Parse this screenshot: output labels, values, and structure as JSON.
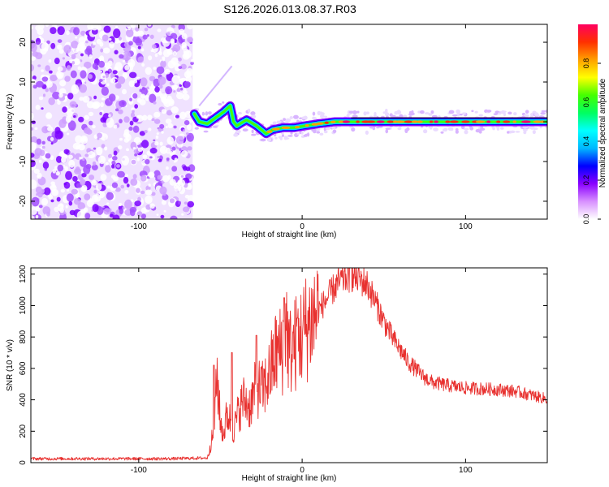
{
  "title": "S126.2026.013.08.37.R03",
  "chart_data": [
    {
      "type": "heatmap",
      "name": "spectrogram",
      "xlabel": "Height of straight line (km)",
      "ylabel": "Frequency (Hz)",
      "xlim": [
        -166,
        150
      ],
      "ylim": [
        -24.5,
        24.5
      ],
      "xticks": [
        -100,
        0,
        100
      ],
      "xtick_labels": [
        "-100",
        "0",
        "100"
      ],
      "yticks": [
        -20,
        -10,
        0,
        10,
        20
      ],
      "ytick_labels": [
        "-20",
        "-10",
        "0",
        "10",
        "20"
      ],
      "noise_region": [
        -166,
        -67
      ],
      "ridge": [
        {
          "x": -66,
          "y": 2
        },
        {
          "x": -63,
          "y": 0
        },
        {
          "x": -58,
          "y": -0.5
        },
        {
          "x": -53,
          "y": 1
        },
        {
          "x": -48,
          "y": 2.5
        },
        {
          "x": -44,
          "y": 4
        },
        {
          "x": -42,
          "y": 0
        },
        {
          "x": -40,
          "y": -1
        },
        {
          "x": -34,
          "y": 0.5
        },
        {
          "x": -28,
          "y": -1
        },
        {
          "x": -22,
          "y": -3
        },
        {
          "x": -18,
          "y": -2
        },
        {
          "x": -12,
          "y": -1.5
        },
        {
          "x": -5,
          "y": -1.5
        },
        {
          "x": 2,
          "y": -1
        },
        {
          "x": 10,
          "y": -0.5
        },
        {
          "x": 20,
          "y": 0
        },
        {
          "x": 40,
          "y": 0
        },
        {
          "x": 60,
          "y": 0
        },
        {
          "x": 80,
          "y": 0
        },
        {
          "x": 100,
          "y": 0
        },
        {
          "x": 120,
          "y": 0
        },
        {
          "x": 150,
          "y": 0
        }
      ],
      "faint_streak": [
        {
          "x": -63,
          "y": 4
        },
        {
          "x": -43,
          "y": 14
        }
      ],
      "reference_line": {
        "x_from": 30,
        "x_to": 150,
        "y": 1
      },
      "colorbar": {
        "label": "Normalized spectral amplitude",
        "range": [
          0,
          1
        ],
        "ticks": [
          0,
          0.2,
          0.4,
          0.6,
          0.8
        ],
        "tick_labels": [
          "0.0",
          "0.2",
          "0.4",
          "0.6",
          "0.8"
        ],
        "colors": [
          "#ffffff",
          "#d890ff",
          "#8a00ff",
          "#0000ff",
          "#00b8ff",
          "#00ffff",
          "#00ff60",
          "#44ff00",
          "#ffff00",
          "#ffa000",
          "#ff3000",
          "#ff0060"
        ]
      }
    },
    {
      "type": "line",
      "name": "snr",
      "xlabel": "Height of straight line (km)",
      "ylabel": "SNR (10 * v/v)",
      "xlim": [
        -166,
        150
      ],
      "ylim": [
        0,
        1240
      ],
      "xticks": [
        -100,
        0,
        100
      ],
      "xtick_labels": [
        "-100",
        "0",
        "100"
      ],
      "yticks": [
        0,
        200,
        400,
        600,
        800,
        1000,
        1200
      ],
      "ytick_labels": [
        "0",
        "200",
        "400",
        "600",
        "800",
        "1000",
        "1200"
      ],
      "color": "#e8312f",
      "x": [
        -166,
        -140,
        -110,
        -80,
        -58,
        -54,
        -52,
        -50,
        -48,
        -46,
        -44,
        -42,
        -40,
        -36,
        -32,
        -28,
        -24,
        -20,
        -16,
        -12,
        -10,
        -8,
        -4,
        0,
        5,
        10,
        15,
        20,
        25,
        30,
        35,
        40,
        45,
        50,
        55,
        60,
        65,
        70,
        75,
        80,
        90,
        100,
        110,
        120,
        130,
        140,
        150
      ],
      "values": [
        25,
        25,
        25,
        25,
        30,
        200,
        560,
        250,
        180,
        310,
        270,
        200,
        290,
        400,
        360,
        480,
        460,
        560,
        700,
        720,
        920,
        700,
        760,
        820,
        900,
        970,
        1040,
        1120,
        1170,
        1190,
        1170,
        1130,
        1020,
        900,
        800,
        720,
        640,
        590,
        540,
        510,
        490,
        475,
        470,
        465,
        455,
        430,
        405
      ],
      "spikes": [
        {
          "x": -54,
          "y": 620
        },
        {
          "x": -43,
          "y": 700
        },
        {
          "x": -28,
          "y": 810
        },
        {
          "x": -11,
          "y": 1050
        },
        {
          "x": -3,
          "y": 920
        },
        {
          "x": 30,
          "y": 1240
        }
      ]
    }
  ]
}
